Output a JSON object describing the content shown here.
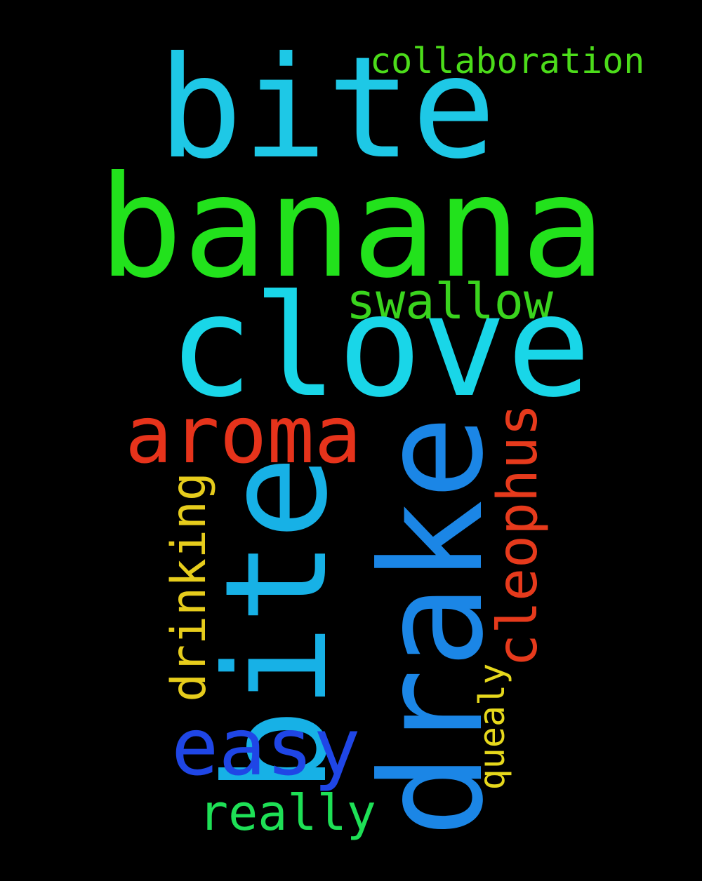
{
  "words": {
    "bite_horizontal": "bite",
    "banana": "banana",
    "collaboration": "collaboration",
    "swallow": "swallow",
    "clove": "clove",
    "aroma": "aroma",
    "bite_vertical": "bite",
    "drake": "drake",
    "cleophus": "cleophus",
    "drinking": "drinking",
    "easy": "easy",
    "quealy": "quealy",
    "really": "really"
  },
  "colors": {
    "background": "#000000",
    "bite_horizontal": "#1ec8e6",
    "banana": "#22e21c",
    "collaboration": "#4cdc1a",
    "swallow": "#3ad41e",
    "clove": "#19d6e8",
    "aroma": "#e6331b",
    "bite_vertical": "#17b1e6",
    "drake": "#1b86e6",
    "cleophus": "#e63a1c",
    "drinking": "#e6cc1c",
    "easy": "#1f46e6",
    "quealy": "#e6d81c",
    "really": "#1ee056"
  }
}
